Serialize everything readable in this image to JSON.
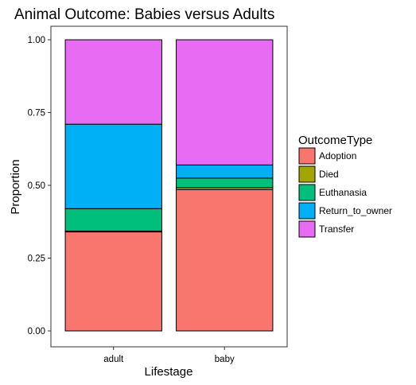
{
  "chart_data": {
    "type": "bar",
    "stacked": true,
    "title": "Animal Outcome: Babies versus Adults",
    "xlabel": "Lifestage",
    "ylabel": "Proportion",
    "ylim": [
      0,
      1
    ],
    "yticks": [
      "0.00",
      "0.25",
      "0.50",
      "0.75",
      "1.00"
    ],
    "categories": [
      "adult",
      "baby"
    ],
    "legend_title": "OutcomeType",
    "legend_position": "right",
    "grid": false,
    "series": [
      {
        "name": "Adoption",
        "color": "#F8766D",
        "values": [
          0.34,
          0.485
        ]
      },
      {
        "name": "Died",
        "color": "#A3A500",
        "values": [
          0.003,
          0.007
        ]
      },
      {
        "name": "Euthanasia",
        "color": "#00BF7D",
        "values": [
          0.077,
          0.033
        ]
      },
      {
        "name": "Return_to_owner",
        "color": "#00B0F6",
        "values": [
          0.29,
          0.045
        ]
      },
      {
        "name": "Transfer",
        "color": "#E76BF3",
        "values": [
          0.29,
          0.43
        ]
      }
    ]
  }
}
